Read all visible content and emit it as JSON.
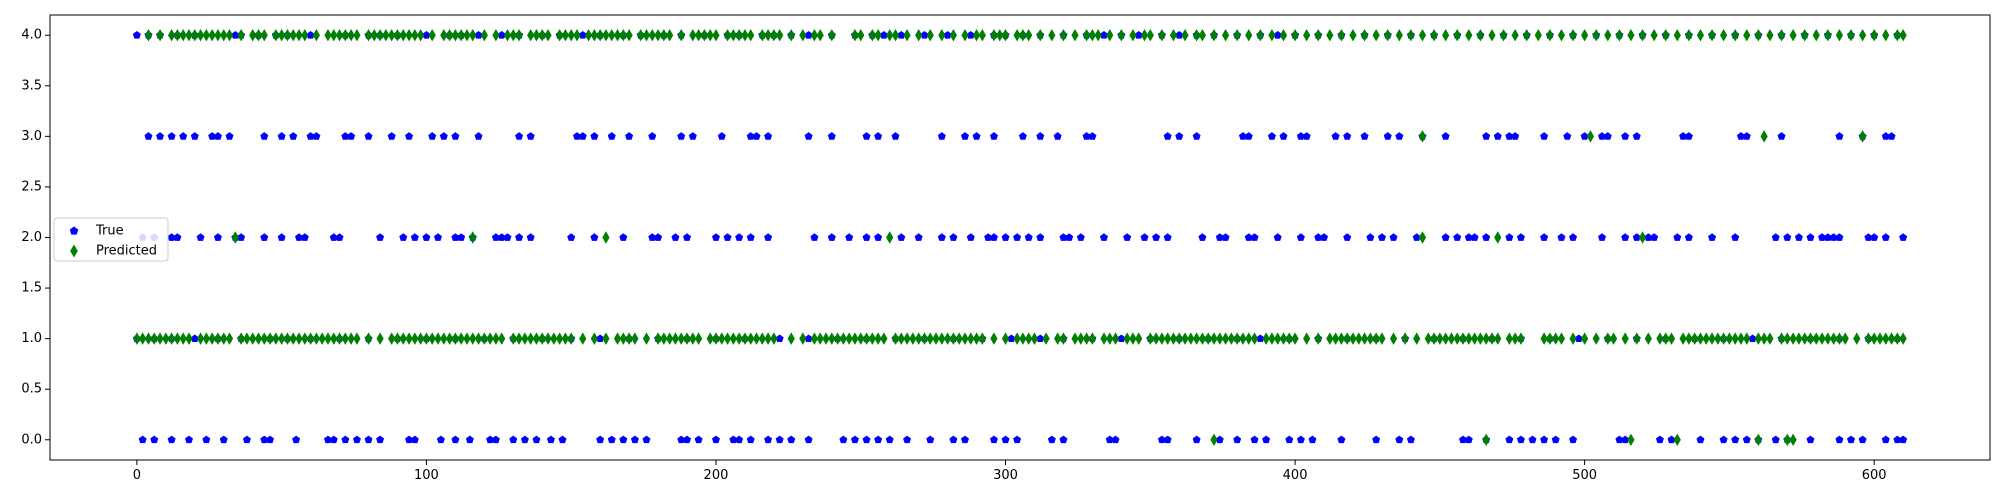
{
  "chart_data": {
    "type": "scatter",
    "title": "",
    "xlabel": "",
    "ylabel": "",
    "xlim": [
      -30,
      640
    ],
    "ylim": [
      -0.2,
      4.2
    ],
    "x_ticks": [
      0,
      100,
      200,
      300,
      400,
      500,
      600
    ],
    "y_ticks": [
      0.0,
      0.5,
      1.0,
      1.5,
      2.0,
      2.5,
      3.0,
      3.5,
      4.0
    ],
    "x_tick_labels": [
      "0",
      "100",
      "200",
      "300",
      "400",
      "500",
      "600"
    ],
    "y_tick_labels": [
      "0.0",
      "0.5",
      "1.0",
      "1.5",
      "2.0",
      "2.5",
      "3.0",
      "3.5",
      "4.0"
    ],
    "grid": false,
    "legend_position": "center-left",
    "series": [
      {
        "name": "True",
        "marker": "pentagon",
        "color": "#0000ff",
        "points_by_class": {
          "0": [
            2,
            6,
            12,
            18,
            24,
            30,
            38,
            44,
            46,
            55,
            66,
            68,
            72,
            76,
            80,
            84,
            94,
            96,
            105,
            110,
            115,
            122,
            124,
            130,
            134,
            138,
            143,
            147,
            160,
            164,
            168,
            172,
            176,
            188,
            190,
            194,
            200,
            206,
            208,
            212,
            218,
            222,
            226,
            232,
            244,
            248,
            252,
            256,
            260,
            266,
            274,
            282,
            286,
            296,
            300,
            304,
            316,
            320,
            336,
            338,
            354,
            356,
            366,
            374,
            380,
            386,
            390,
            398,
            402,
            406,
            416,
            428,
            436,
            440,
            458,
            460,
            466,
            474,
            478,
            482,
            486,
            490,
            496,
            512,
            514,
            526,
            530,
            540,
            548,
            552,
            556,
            560,
            566,
            570,
            578,
            588,
            592,
            596,
            604,
            608,
            610
          ],
          "1": [
            0,
            6,
            12,
            20,
            28,
            36,
            46,
            52,
            60,
            70,
            80,
            90,
            100,
            110,
            120,
            130,
            140,
            150,
            160,
            170,
            180,
            190,
            200,
            210,
            222,
            232,
            242,
            252,
            262,
            272,
            282,
            292,
            302,
            312,
            320,
            330,
            340,
            350,
            360,
            370,
            380,
            388,
            398,
            408,
            418,
            428,
            438,
            448,
            458,
            468,
            478,
            488,
            498,
            508,
            518,
            528,
            538,
            548,
            558,
            568,
            578,
            588,
            598,
            608
          ],
          "2": [
            2,
            6,
            12,
            14,
            22,
            28,
            34,
            36,
            44,
            50,
            56,
            58,
            68,
            70,
            84,
            92,
            96,
            100,
            104,
            110,
            112,
            116,
            124,
            126,
            128,
            132,
            136,
            150,
            158,
            168,
            178,
            180,
            186,
            190,
            200,
            204,
            208,
            212,
            218,
            234,
            240,
            246,
            252,
            256,
            264,
            270,
            278,
            282,
            288,
            294,
            296,
            300,
            304,
            308,
            312,
            320,
            322,
            326,
            334,
            342,
            348,
            352,
            356,
            368,
            374,
            376,
            384,
            386,
            394,
            402,
            408,
            410,
            418,
            426,
            430,
            434,
            442,
            452,
            456,
            460,
            462,
            466,
            474,
            478,
            486,
            492,
            496,
            506,
            514,
            518,
            522,
            524,
            532,
            536,
            544,
            552,
            566,
            570,
            574,
            578,
            582,
            584,
            586,
            588,
            598,
            600,
            604,
            610
          ],
          "3": [
            4,
            8,
            12,
            16,
            20,
            26,
            28,
            32,
            44,
            50,
            54,
            60,
            62,
            72,
            74,
            80,
            88,
            94,
            102,
            106,
            110,
            118,
            132,
            136,
            152,
            154,
            158,
            164,
            170,
            178,
            188,
            192,
            202,
            212,
            214,
            218,
            232,
            240,
            252,
            256,
            262,
            278,
            286,
            290,
            296,
            306,
            312,
            318,
            328,
            330,
            356,
            360,
            366,
            382,
            384,
            392,
            396,
            402,
            404,
            414,
            418,
            424,
            432,
            436,
            444,
            452,
            466,
            470,
            474,
            476,
            486,
            494,
            500,
            506,
            508,
            514,
            518,
            534,
            536,
            554,
            556,
            568,
            588,
            596,
            604,
            606
          ],
          "4": [
            0,
            4,
            8,
            14,
            20,
            34,
            36,
            42,
            48,
            52,
            60,
            72,
            80,
            84,
            90,
            100,
            108,
            112,
            118,
            126,
            132,
            140,
            146,
            154,
            160,
            168,
            174,
            182,
            188,
            196,
            204,
            208,
            216,
            220,
            226,
            232,
            240,
            248,
            254,
            258,
            264,
            272,
            280,
            288,
            296,
            300,
            306,
            312,
            320,
            328,
            334,
            340,
            346,
            354,
            360,
            366,
            372,
            380,
            388,
            394,
            400,
            408,
            416,
            424,
            432,
            440,
            448,
            456,
            464,
            472,
            480,
            488,
            496,
            504,
            512,
            520,
            528,
            536,
            544,
            552,
            560,
            568,
            576,
            584,
            592,
            600,
            608
          ]
        }
      },
      {
        "name": "Predicted",
        "marker": "thin_diamond",
        "color": "#008000",
        "points_by_class": {
          "0": [
            372,
            466,
            516,
            532,
            560,
            570,
            572
          ],
          "1": [
            0,
            2,
            4,
            6,
            8,
            10,
            12,
            14,
            16,
            18,
            22,
            24,
            26,
            28,
            30,
            32,
            36,
            38,
            40,
            42,
            44,
            46,
            48,
            50,
            52,
            54,
            56,
            58,
            60,
            62,
            64,
            66,
            68,
            70,
            72,
            74,
            76,
            80,
            84,
            88,
            90,
            92,
            94,
            96,
            98,
            100,
            102,
            104,
            106,
            108,
            110,
            112,
            114,
            116,
            118,
            120,
            122,
            124,
            126,
            130,
            132,
            134,
            136,
            138,
            140,
            142,
            144,
            146,
            148,
            150,
            154,
            158,
            162,
            166,
            168,
            170,
            172,
            176,
            180,
            182,
            184,
            186,
            188,
            190,
            192,
            194,
            198,
            200,
            202,
            204,
            206,
            208,
            210,
            212,
            214,
            216,
            218,
            220,
            226,
            230,
            234,
            236,
            238,
            240,
            242,
            244,
            246,
            248,
            250,
            252,
            254,
            256,
            258,
            262,
            264,
            266,
            268,
            270,
            272,
            274,
            276,
            278,
            280,
            282,
            284,
            286,
            288,
            290,
            292,
            296,
            300,
            304,
            306,
            308,
            310,
            314,
            318,
            320,
            324,
            326,
            328,
            330,
            334,
            336,
            338,
            342,
            344,
            346,
            350,
            352,
            354,
            356,
            358,
            360,
            362,
            364,
            366,
            368,
            370,
            372,
            374,
            376,
            378,
            380,
            382,
            384,
            386,
            390,
            392,
            394,
            396,
            398,
            400,
            404,
            408,
            412,
            414,
            416,
            418,
            420,
            422,
            424,
            426,
            428,
            430,
            434,
            438,
            442,
            446,
            448,
            450,
            452,
            454,
            456,
            458,
            460,
            462,
            464,
            466,
            468,
            470,
            474,
            476,
            478,
            486,
            488,
            490,
            492,
            496,
            500,
            504,
            508,
            510,
            514,
            518,
            522,
            526,
            528,
            530,
            534,
            536,
            538,
            540,
            542,
            544,
            546,
            548,
            550,
            552,
            554,
            556,
            560,
            562,
            564,
            568,
            570,
            572,
            574,
            576,
            578,
            580,
            582,
            584,
            586,
            588,
            590,
            594,
            598,
            600,
            602,
            604,
            606,
            608,
            610
          ],
          "2": [
            34,
            116,
            162,
            260,
            444,
            470,
            520
          ],
          "3": [
            444,
            502,
            562,
            596
          ],
          "4": [
            4,
            8,
            12,
            14,
            16,
            18,
            20,
            22,
            24,
            26,
            28,
            30,
            32,
            36,
            40,
            42,
            44,
            48,
            50,
            52,
            54,
            56,
            58,
            62,
            66,
            68,
            70,
            72,
            74,
            76,
            80,
            82,
            84,
            86,
            88,
            90,
            92,
            94,
            96,
            98,
            102,
            106,
            108,
            110,
            112,
            114,
            116,
            120,
            124,
            128,
            130,
            132,
            136,
            138,
            140,
            142,
            146,
            148,
            150,
            152,
            156,
            158,
            160,
            162,
            164,
            166,
            168,
            170,
            174,
            176,
            178,
            180,
            182,
            184,
            188,
            192,
            194,
            196,
            198,
            200,
            204,
            206,
            208,
            210,
            212,
            216,
            218,
            220,
            222,
            226,
            230,
            234,
            236,
            240,
            248,
            250,
            254,
            256,
            260,
            262,
            266,
            270,
            274,
            278,
            282,
            286,
            290,
            292,
            296,
            298,
            300,
            304,
            306,
            308,
            312,
            316,
            320,
            324,
            328,
            330,
            332,
            336,
            340,
            344,
            348,
            350,
            354,
            358,
            362,
            366,
            368,
            372,
            376,
            380,
            384,
            388,
            392,
            396,
            400,
            404,
            408,
            412,
            416,
            420,
            424,
            428,
            432,
            436,
            440,
            444,
            448,
            452,
            456,
            460,
            464,
            468,
            472,
            476,
            480,
            484,
            488,
            492,
            496,
            500,
            504,
            508,
            512,
            516,
            520,
            524,
            528,
            532,
            536,
            540,
            544,
            548,
            552,
            556,
            560,
            564,
            568,
            572,
            576,
            580,
            584,
            588,
            592,
            596,
            600,
            604,
            608,
            610
          ]
        }
      }
    ]
  }
}
